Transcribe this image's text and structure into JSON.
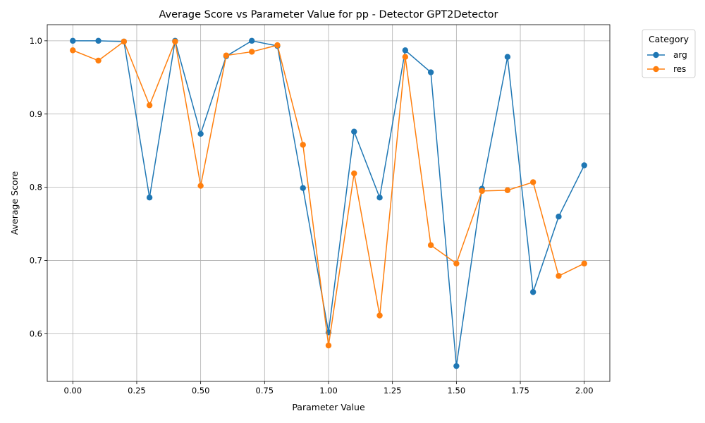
{
  "chart_data": {
    "type": "line",
    "title": "Average Score vs Parameter Value for pp - Detector GPT2Detector",
    "xlabel": "Parameter Value",
    "ylabel": "Average Score",
    "xlim": [
      -0.1,
      2.1
    ],
    "ylim": [
      0.535,
      1.022
    ],
    "xticks": [
      0.0,
      0.25,
      0.5,
      0.75,
      1.0,
      1.25,
      1.5,
      1.75,
      2.0
    ],
    "xtick_labels": [
      "0.00",
      "0.25",
      "0.50",
      "0.75",
      "1.00",
      "1.25",
      "1.50",
      "1.75",
      "2.00"
    ],
    "yticks": [
      0.6,
      0.7,
      0.8,
      0.9,
      1.0
    ],
    "ytick_labels": [
      "0.6",
      "0.7",
      "0.8",
      "0.9",
      "1.0"
    ],
    "grid": true,
    "legend": {
      "title": "Category",
      "placement": "outside-top-right"
    },
    "x": [
      0.0,
      0.1,
      0.2,
      0.3,
      0.4,
      0.5,
      0.6,
      0.7,
      0.8,
      0.9,
      1.0,
      1.1,
      1.2,
      1.3,
      1.4,
      1.5,
      1.6,
      1.7,
      1.8,
      1.9,
      2.0
    ],
    "series": [
      {
        "name": "arg",
        "color": "#1f77b4",
        "values": [
          1.0,
          1.0,
          0.999,
          0.786,
          1.0,
          0.873,
          0.979,
          1.0,
          0.993,
          0.799,
          0.602,
          0.876,
          0.786,
          0.987,
          0.957,
          0.556,
          0.798,
          0.978,
          0.657,
          0.76,
          0.83
        ]
      },
      {
        "name": "res",
        "color": "#ff7f0e",
        "values": [
          0.987,
          0.973,
          0.999,
          0.912,
          0.999,
          0.802,
          0.98,
          0.985,
          0.994,
          0.858,
          0.584,
          0.819,
          0.625,
          0.978,
          0.721,
          0.696,
          0.795,
          0.796,
          0.807,
          0.679,
          0.696
        ]
      }
    ]
  }
}
